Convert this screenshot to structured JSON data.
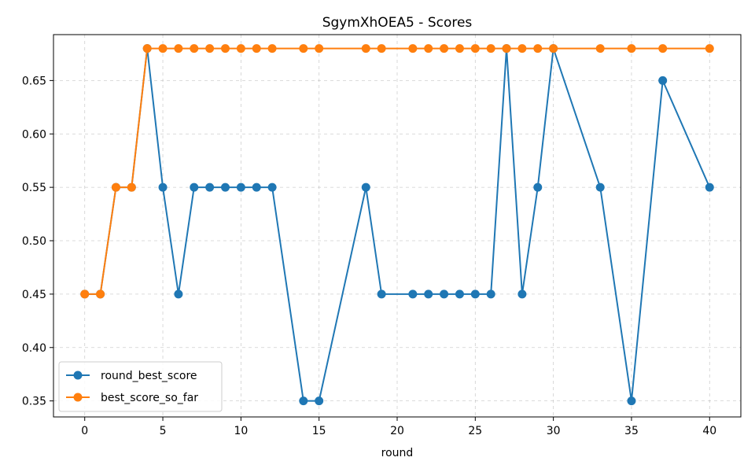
{
  "chart_data": {
    "type": "line",
    "title": "SgymXhOEA5 - Scores",
    "xlabel": "round",
    "ylabel": "",
    "xlim": [
      -2,
      42
    ],
    "ylim": [
      0.335,
      0.693
    ],
    "xticks": [
      0,
      5,
      10,
      15,
      20,
      25,
      30,
      35,
      40
    ],
    "yticks": [
      0.35,
      0.4,
      0.45,
      0.5,
      0.55,
      0.6,
      0.65
    ],
    "ytick_labels": [
      "0.35",
      "0.40",
      "0.45",
      "0.50",
      "0.55",
      "0.60",
      "0.65"
    ],
    "grid": true,
    "legend_position": "lower-left",
    "x": [
      0,
      1,
      2,
      3,
      4,
      5,
      6,
      7,
      8,
      9,
      10,
      11,
      12,
      14,
      15,
      18,
      19,
      21,
      22,
      23,
      24,
      25,
      26,
      27,
      28,
      29,
      30,
      33,
      35,
      37,
      40
    ],
    "series": [
      {
        "name": "round_best_score",
        "color": "#1f77b4",
        "values": [
          0.45,
          0.45,
          0.55,
          0.55,
          0.68,
          0.55,
          0.45,
          0.55,
          0.55,
          0.55,
          0.55,
          0.55,
          0.55,
          0.35,
          0.35,
          0.55,
          0.45,
          0.45,
          0.45,
          0.45,
          0.45,
          0.45,
          0.45,
          0.68,
          0.45,
          0.55,
          0.68,
          0.55,
          0.35,
          0.65,
          0.55
        ]
      },
      {
        "name": "best_score_so_far",
        "color": "#ff7f0e",
        "values": [
          0.45,
          0.45,
          0.55,
          0.55,
          0.68,
          0.68,
          0.68,
          0.68,
          0.68,
          0.68,
          0.68,
          0.68,
          0.68,
          0.68,
          0.68,
          0.68,
          0.68,
          0.68,
          0.68,
          0.68,
          0.68,
          0.68,
          0.68,
          0.68,
          0.68,
          0.68,
          0.68,
          0.68,
          0.68,
          0.68,
          0.68
        ]
      }
    ]
  }
}
